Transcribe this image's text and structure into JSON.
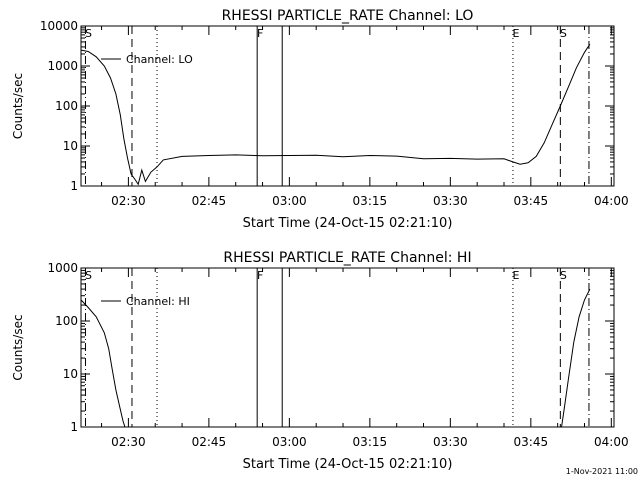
{
  "footer": {
    "timestamp": "1-Nov-2021 11:00"
  },
  "chart_data": [
    {
      "type": "line",
      "title": "RHESSI PARTICLE_RATE Channel: LO",
      "xlabel": "Start Time (24-Oct-15 02:21:10)",
      "ylabel": "Counts/sec",
      "yscale": "log",
      "ylim": [
        1,
        10000
      ],
      "yticks": [
        "1",
        "10",
        "100",
        "1000",
        "10000"
      ],
      "xlim": [
        "02:21:10",
        "04:00:30"
      ],
      "xticks": [
        "02:30",
        "02:45",
        "03:00",
        "03:15",
        "03:30",
        "03:45",
        "04:00"
      ],
      "legend": {
        "entries": [
          "Channel: LO"
        ],
        "placement": "top-left"
      },
      "grid": false,
      "markers": [
        {
          "time": "02:22:00",
          "style": "dash-dot",
          "label": "S"
        },
        {
          "time": "02:30:40",
          "style": "dashed",
          "label": ""
        },
        {
          "time": "02:35:20",
          "style": "dotted",
          "label": ""
        },
        {
          "time": "02:54:00",
          "style": "solid",
          "label": "F"
        },
        {
          "time": "02:58:40",
          "style": "solid",
          "label": ""
        },
        {
          "time": "03:41:40",
          "style": "dotted",
          "label": "E"
        },
        {
          "time": "03:50:30",
          "style": "dashed",
          "label": "S"
        },
        {
          "time": "03:55:50",
          "style": "dash-dot",
          "label": ""
        }
      ],
      "series": [
        {
          "name": "Channel: LO",
          "x": [
            "02:21:10",
            "02:22:30",
            "02:24:00",
            "02:25:30",
            "02:26:40",
            "02:27:40",
            "02:28:30",
            "02:29:10",
            "02:29:50",
            "02:30:30",
            "02:31:10",
            "02:31:50",
            "02:32:30",
            "02:33:10",
            "02:34:10",
            "02:35:20",
            "02:36:30",
            "02:40:00",
            "02:45:00",
            "02:50:00",
            "02:55:00",
            "03:00:00",
            "03:05:00",
            "03:10:00",
            "03:15:00",
            "03:20:00",
            "03:25:00",
            "03:30:00",
            "03:35:00",
            "03:40:00",
            "03:41:40",
            "03:43:00",
            "03:44:30",
            "03:46:00",
            "03:47:30",
            "03:49:00",
            "03:50:30",
            "03:52:00",
            "03:53:30",
            "03:55:00",
            "03:56:00"
          ],
          "values": [
            2500,
            2300,
            1700,
            1000,
            500,
            200,
            60,
            15,
            5,
            2,
            1.5,
            1.1,
            2.5,
            1.3,
            2.2,
            3,
            4.5,
            5.5,
            5.8,
            6,
            5.7,
            5.8,
            5.9,
            5.4,
            5.8,
            5.6,
            4.8,
            4.9,
            4.7,
            4.8,
            4,
            3.5,
            3.8,
            5.5,
            12,
            35,
            100,
            300,
            900,
            2200,
            3500
          ]
        }
      ]
    },
    {
      "type": "line",
      "title": "RHESSI PARTICLE_RATE Channel: HI",
      "xlabel": "Start Time (24-Oct-15 02:21:10)",
      "ylabel": "Counts/sec",
      "yscale": "log",
      "ylim": [
        1,
        1000
      ],
      "yticks": [
        "1",
        "10",
        "100",
        "1000"
      ],
      "xlim": [
        "02:21:10",
        "04:00:30"
      ],
      "xticks": [
        "02:30",
        "02:45",
        "03:00",
        "03:15",
        "03:30",
        "03:45",
        "04:00"
      ],
      "legend": {
        "entries": [
          "Channel: HI"
        ],
        "placement": "top-left"
      },
      "grid": false,
      "markers": [
        {
          "time": "02:22:00",
          "style": "dash-dot",
          "label": "S"
        },
        {
          "time": "02:30:40",
          "style": "dashed",
          "label": ""
        },
        {
          "time": "02:35:20",
          "style": "dotted",
          "label": ""
        },
        {
          "time": "02:54:00",
          "style": "solid",
          "label": "F"
        },
        {
          "time": "02:58:40",
          "style": "solid",
          "label": ""
        },
        {
          "time": "03:41:40",
          "style": "dotted",
          "label": "E"
        },
        {
          "time": "03:50:30",
          "style": "dashed",
          "label": "S"
        },
        {
          "time": "03:55:50",
          "style": "dash-dot",
          "label": ""
        }
      ],
      "series": [
        {
          "name": "Channel: HI",
          "x": [
            "02:21:10",
            "02:22:30",
            "02:24:00",
            "02:25:30",
            "02:26:20",
            "02:27:00",
            "02:27:40",
            "02:28:20",
            "02:29:00",
            "02:29:30",
            "03:50:40",
            "03:51:10",
            "03:52:00",
            "03:53:00",
            "03:54:00",
            "03:55:00",
            "03:56:00"
          ],
          "values": [
            250,
            180,
            120,
            60,
            30,
            12,
            5,
            2.5,
            1.3,
            0.9,
            0.9,
            2,
            8,
            40,
            120,
            250,
            400
          ]
        }
      ]
    }
  ]
}
